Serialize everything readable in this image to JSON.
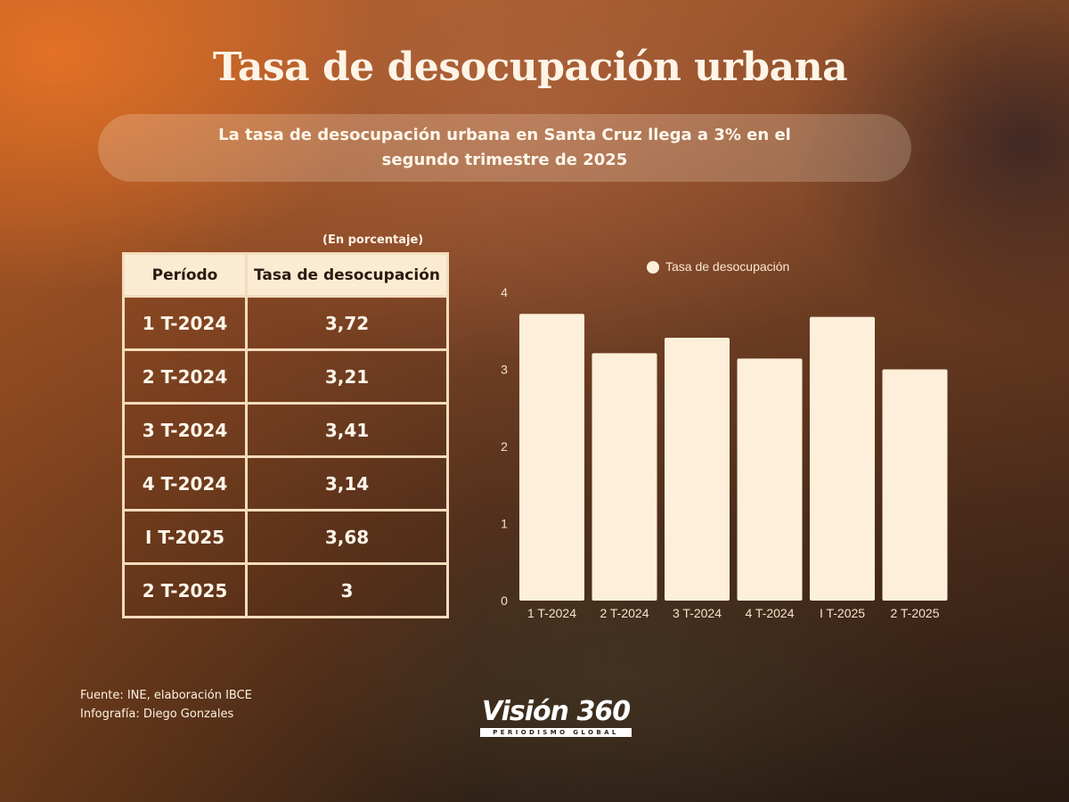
{
  "title": "Tasa de desocupación urbana",
  "subtitle": "La tasa de desocupación urbana en Santa Cruz llega a 3%  en el segundo trimestre de 2025",
  "table": {
    "unit_note": "(En porcentaje)",
    "headers": [
      "Período",
      "Tasa de desocupación"
    ],
    "rows": [
      [
        "1 T-2024",
        "3,72"
      ],
      [
        "2 T-2024",
        "3,21"
      ],
      [
        "3 T-2024",
        "3,41"
      ],
      [
        "4 T-2024",
        "3,14"
      ],
      [
        "I T-2025",
        "3,68"
      ],
      [
        "2 T-2025",
        "3"
      ]
    ]
  },
  "chart_data": {
    "type": "bar",
    "categories": [
      "1 T-2024",
      "2 T-2024",
      "3 T-2024",
      "4 T-2024",
      "I T-2025",
      "2 T-2025"
    ],
    "series": [
      {
        "name": "Tasa de desocupación",
        "values": [
          3.72,
          3.21,
          3.41,
          3.14,
          3.68,
          3.0
        ]
      }
    ],
    "ylim": [
      0,
      4
    ],
    "yticks": [
      0,
      1,
      2,
      3,
      4
    ],
    "legend": "top-center",
    "grid": false,
    "bar_color": "#fdefd9"
  },
  "footer": {
    "source": "Fuente:  INE, elaboración IBCE",
    "credit": "Infografía: Diego Gonzales"
  },
  "brand": {
    "name": "Visión 360",
    "tagline": "PERIODISMO GLOBAL"
  }
}
